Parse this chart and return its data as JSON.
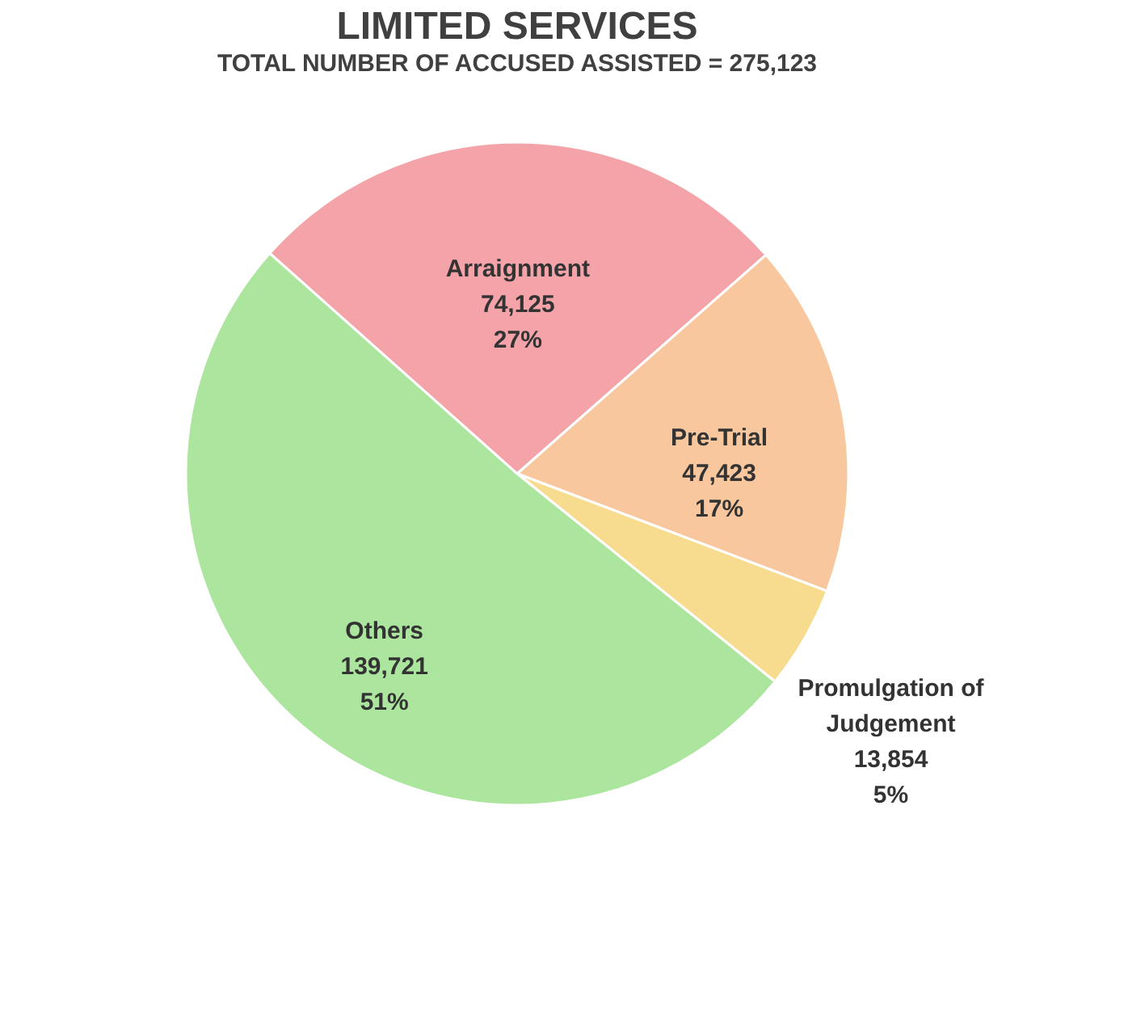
{
  "chart_data": {
    "type": "pie",
    "title": "LIMITED SERVICES",
    "subtitle": "TOTAL NUMBER OF ACCUSED ASSISTED = 275,123",
    "categories": [
      "Arraignment",
      "Pre-Trial",
      "Promulgation of Judgement",
      "Others"
    ],
    "values": [
      74125,
      47423,
      13854,
      139721
    ],
    "colors": [
      "#f4a3a8",
      "#f8c79e",
      "#f7dc8f",
      "#acE59d"
    ],
    "value_labels": [
      "74,125\n27%",
      "47,423\n17%",
      "13,854\n5%",
      "139,721\n51%"
    ],
    "legend": false
  }
}
